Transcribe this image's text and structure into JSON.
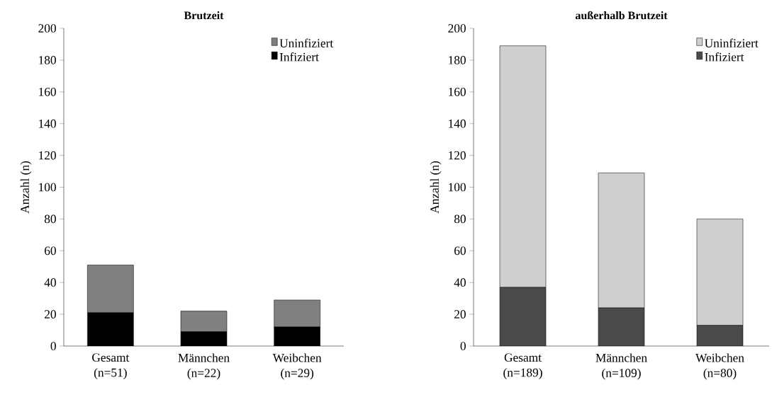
{
  "chart_data": [
    {
      "type": "bar",
      "title": "Brutzeit",
      "ylabel": "Anzahl (n)",
      "categories": [
        "Gesamt (n=51)",
        "Männchen (n=22)",
        "Weibchen (n=29)"
      ],
      "stacked": true,
      "series": [
        {
          "name": "Infiziert",
          "color": "#000000",
          "values": [
            21,
            9,
            12
          ]
        },
        {
          "name": "Uninfiziert",
          "color": "#808080",
          "values": [
            30,
            13,
            17
          ]
        }
      ],
      "ylim": [
        0,
        200
      ],
      "yticks": [
        0,
        20,
        40,
        60,
        80,
        100,
        120,
        140,
        160,
        180,
        200
      ],
      "legend": "top right"
    },
    {
      "type": "bar",
      "title": "außerhalb Brutzeit",
      "ylabel": "Anzahl (n)",
      "categories": [
        "Gesamt (n=189)",
        "Männchen (n=109)",
        "Weibchen (n=80)"
      ],
      "stacked": true,
      "series": [
        {
          "name": "Infiziert",
          "color": "#4a4a4a",
          "values": [
            37,
            24,
            13
          ]
        },
        {
          "name": "Uninfiziert",
          "color": "#cfcfcf",
          "values": [
            152,
            85,
            67
          ]
        }
      ],
      "ylim": [
        0,
        200
      ],
      "yticks": [
        0,
        20,
        40,
        60,
        80,
        100,
        120,
        140,
        160,
        180,
        200
      ],
      "legend": "top right"
    }
  ]
}
